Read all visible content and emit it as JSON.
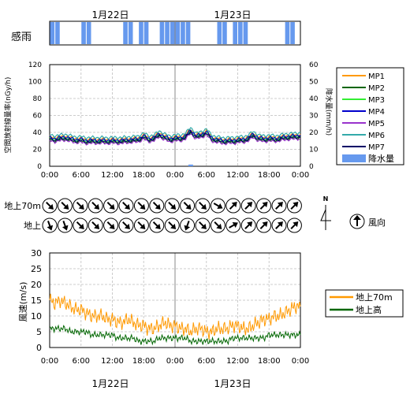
{
  "dates": [
    "1月22日",
    "1月23日"
  ],
  "rain_label": "感雨",
  "wind_rows": [
    "地上70m",
    "地上"
  ],
  "wind_dir_label": "風向",
  "north_label": "N",
  "time_ticks": [
    "0:00",
    "6:00",
    "12:00",
    "18:00",
    "0:00",
    "6:00",
    "12:00",
    "18:00",
    "0:00"
  ],
  "chart_data": [
    {
      "type": "bar",
      "title": "感雨",
      "note": "rain-sensor on/off bars across 48 hours (hour indices with rain detected)",
      "rain_on_hours": [
        0,
        1,
        6,
        7,
        14,
        15,
        17,
        18,
        21,
        22,
        23,
        24,
        25,
        26,
        32,
        33,
        35,
        36,
        37,
        45,
        46
      ],
      "x_range_hours": [
        0,
        48
      ]
    },
    {
      "type": "line",
      "ylabel": "空間放射線量率(nGy/h)",
      "y2label": "降水量(mm/h)",
      "ylim": [
        0,
        120
      ],
      "yticks": [
        0,
        20,
        40,
        60,
        80,
        100,
        120
      ],
      "y2lim": [
        0,
        60
      ],
      "y2ticks": [
        0,
        10,
        20,
        30,
        40,
        50,
        60
      ],
      "x_range_hours": [
        0,
        48
      ],
      "legend_position": "right",
      "series": [
        {
          "name": "MP1",
          "color": "#ff9900",
          "offset": 2,
          "values": [
            33,
            32,
            33,
            34,
            32,
            31,
            31,
            30,
            30,
            30,
            30,
            30,
            30,
            30,
            30,
            31,
            31,
            32,
            35,
            32,
            33,
            38,
            34,
            32,
            33,
            33,
            35,
            42,
            35,
            37,
            40,
            33,
            31,
            30,
            30,
            30,
            31,
            31,
            33,
            37,
            33,
            32,
            33,
            32,
            33,
            34,
            35,
            35,
            36
          ]
        },
        {
          "name": "MP2",
          "color": "#006600",
          "offset": -2,
          "values": [
            33,
            32,
            33,
            34,
            32,
            31,
            31,
            30,
            30,
            30,
            30,
            30,
            30,
            30,
            30,
            31,
            31,
            32,
            35,
            32,
            33,
            38,
            34,
            32,
            33,
            33,
            35,
            42,
            35,
            37,
            40,
            33,
            31,
            30,
            30,
            30,
            31,
            31,
            33,
            37,
            33,
            32,
            33,
            32,
            33,
            34,
            35,
            35,
            36
          ]
        },
        {
          "name": "MP3",
          "color": "#33ee33",
          "offset": 0,
          "values": [
            33,
            32,
            33,
            34,
            32,
            31,
            31,
            30,
            30,
            30,
            30,
            30,
            30,
            30,
            30,
            31,
            31,
            32,
            35,
            32,
            33,
            38,
            34,
            32,
            33,
            33,
            35,
            42,
            35,
            37,
            40,
            33,
            31,
            30,
            30,
            30,
            31,
            31,
            33,
            37,
            33,
            32,
            33,
            32,
            33,
            34,
            35,
            35,
            36
          ]
        },
        {
          "name": "MP4",
          "color": "#0000cc",
          "offset": 1,
          "values": [
            33,
            32,
            33,
            34,
            32,
            31,
            31,
            30,
            30,
            30,
            30,
            30,
            30,
            30,
            30,
            31,
            31,
            32,
            35,
            32,
            33,
            38,
            34,
            32,
            33,
            33,
            35,
            42,
            35,
            37,
            40,
            33,
            31,
            30,
            30,
            30,
            31,
            31,
            33,
            37,
            33,
            32,
            33,
            32,
            33,
            34,
            35,
            35,
            36
          ]
        },
        {
          "name": "MP5",
          "color": "#9933cc",
          "offset": -3,
          "values": [
            33,
            32,
            33,
            34,
            32,
            31,
            31,
            30,
            30,
            30,
            30,
            30,
            30,
            30,
            30,
            31,
            31,
            32,
            35,
            32,
            33,
            38,
            34,
            32,
            33,
            33,
            35,
            42,
            35,
            37,
            40,
            33,
            31,
            30,
            30,
            30,
            31,
            31,
            33,
            37,
            33,
            32,
            33,
            32,
            33,
            34,
            35,
            35,
            36
          ]
        },
        {
          "name": "MP6",
          "color": "#33aaaa",
          "offset": 4,
          "values": [
            33,
            32,
            33,
            34,
            32,
            31,
            31,
            30,
            30,
            30,
            30,
            30,
            30,
            30,
            30,
            31,
            31,
            32,
            35,
            32,
            33,
            38,
            34,
            32,
            33,
            33,
            35,
            42,
            35,
            37,
            40,
            33,
            31,
            30,
            30,
            30,
            31,
            31,
            33,
            37,
            33,
            32,
            33,
            32,
            33,
            34,
            35,
            35,
            36
          ]
        },
        {
          "name": "MP7",
          "color": "#000066",
          "offset": -1,
          "values": [
            33,
            32,
            33,
            34,
            32,
            31,
            31,
            30,
            30,
            30,
            30,
            30,
            30,
            30,
            30,
            31,
            31,
            32,
            35,
            32,
            33,
            38,
            34,
            32,
            33,
            33,
            35,
            42,
            35,
            37,
            40,
            33,
            31,
            30,
            30,
            30,
            31,
            31,
            33,
            37,
            33,
            32,
            33,
            32,
            33,
            34,
            35,
            35,
            36
          ]
        }
      ],
      "precip": {
        "name": "降水量",
        "color": "#6699ee",
        "values": [
          0,
          0,
          0,
          0,
          0,
          0,
          0,
          0,
          0,
          0,
          0,
          0,
          0,
          0,
          0,
          0,
          0,
          0,
          0,
          0,
          0,
          0,
          0,
          0,
          0,
          0,
          0,
          1,
          0,
          0,
          0,
          0,
          0,
          0,
          0,
          0,
          0,
          0,
          0,
          0,
          0,
          0,
          0,
          0,
          0,
          0,
          0,
          0,
          0
        ]
      }
    },
    {
      "type": "table",
      "title": "風向",
      "note": "arrow rotation in degrees (0 = pointing up), one per 3 hours, 17 columns",
      "rows": [
        {
          "name": "地上70m",
          "angles": [
            135,
            135,
            135,
            135,
            135,
            135,
            135,
            135,
            135,
            135,
            135,
            120,
            45,
            45,
            45,
            45,
            45
          ]
        },
        {
          "name": "地上",
          "angles": [
            160,
            160,
            135,
            135,
            135,
            135,
            135,
            135,
            135,
            200,
            135,
            135,
            60,
            45,
            45,
            45,
            45
          ]
        }
      ]
    },
    {
      "type": "line",
      "ylabel": "風速(m/s)",
      "ylim": [
        0,
        30
      ],
      "yticks": [
        0,
        5,
        10,
        15,
        20,
        25,
        30
      ],
      "x_range_hours": [
        0,
        48
      ],
      "legend_position": "right",
      "series": [
        {
          "name": "地上70m",
          "color": "#ff9900",
          "values": [
            15,
            14,
            15,
            14,
            13,
            12,
            12,
            11,
            10,
            10,
            10,
            9,
            9,
            8,
            8,
            9,
            8,
            7,
            7,
            6,
            6,
            7,
            8,
            7,
            7,
            6,
            6,
            5,
            6,
            6,
            5,
            5,
            6,
            6,
            6,
            7,
            7,
            6,
            6,
            7,
            8,
            9,
            9,
            10,
            10,
            11,
            12,
            13,
            13
          ]
        },
        {
          "name": "地上高",
          "color": "#006600",
          "values": [
            6,
            6,
            6,
            6,
            5,
            5,
            5,
            5,
            4,
            4,
            4,
            4,
            4,
            3,
            3,
            3,
            3,
            2,
            2,
            2,
            2,
            3,
            3,
            3,
            3,
            3,
            3,
            2,
            2,
            2,
            2,
            2,
            2,
            2,
            2,
            3,
            3,
            3,
            3,
            3,
            3,
            3,
            4,
            4,
            4,
            4,
            4,
            4,
            4
          ]
        }
      ]
    }
  ]
}
